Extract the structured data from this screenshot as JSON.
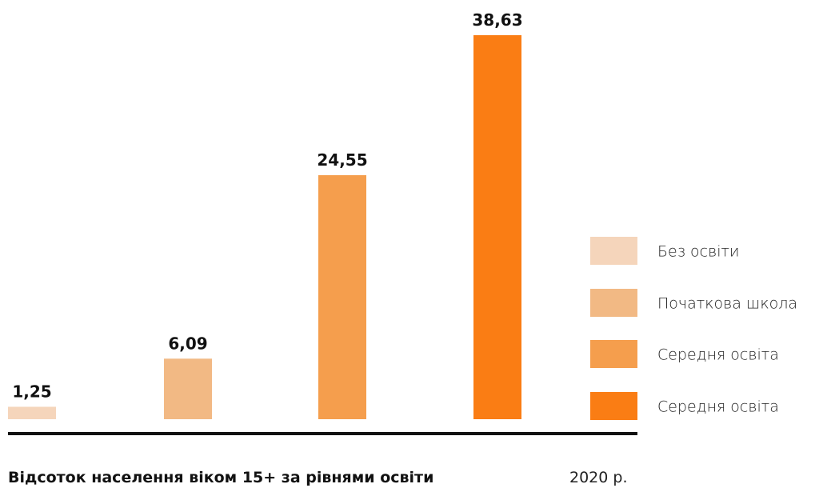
{
  "chart_data": {
    "type": "bar",
    "categories": [
      "Без освіти",
      "Початкова школа",
      "Середня освіта",
      "Середня освіта"
    ],
    "values": [
      1.25,
      6.09,
      24.55,
      38.63
    ],
    "value_labels": [
      "1,25",
      "6,09",
      "24,55",
      "38,63"
    ],
    "colors": [
      "#f5d5bb",
      "#f2b984",
      "#f59e4d",
      "#fa7d14"
    ],
    "title": "Відсоток населення віком 15+ за рівнями освіти",
    "subtitle": "2020 р.",
    "xlabel": "",
    "ylabel": "",
    "ylim": [
      0,
      38.63
    ],
    "grid": false,
    "legend": {
      "placement": "right",
      "entries": [
        "Без освіти",
        "Початкова школа",
        "Середня освіта",
        "Середня освіта"
      ]
    }
  }
}
